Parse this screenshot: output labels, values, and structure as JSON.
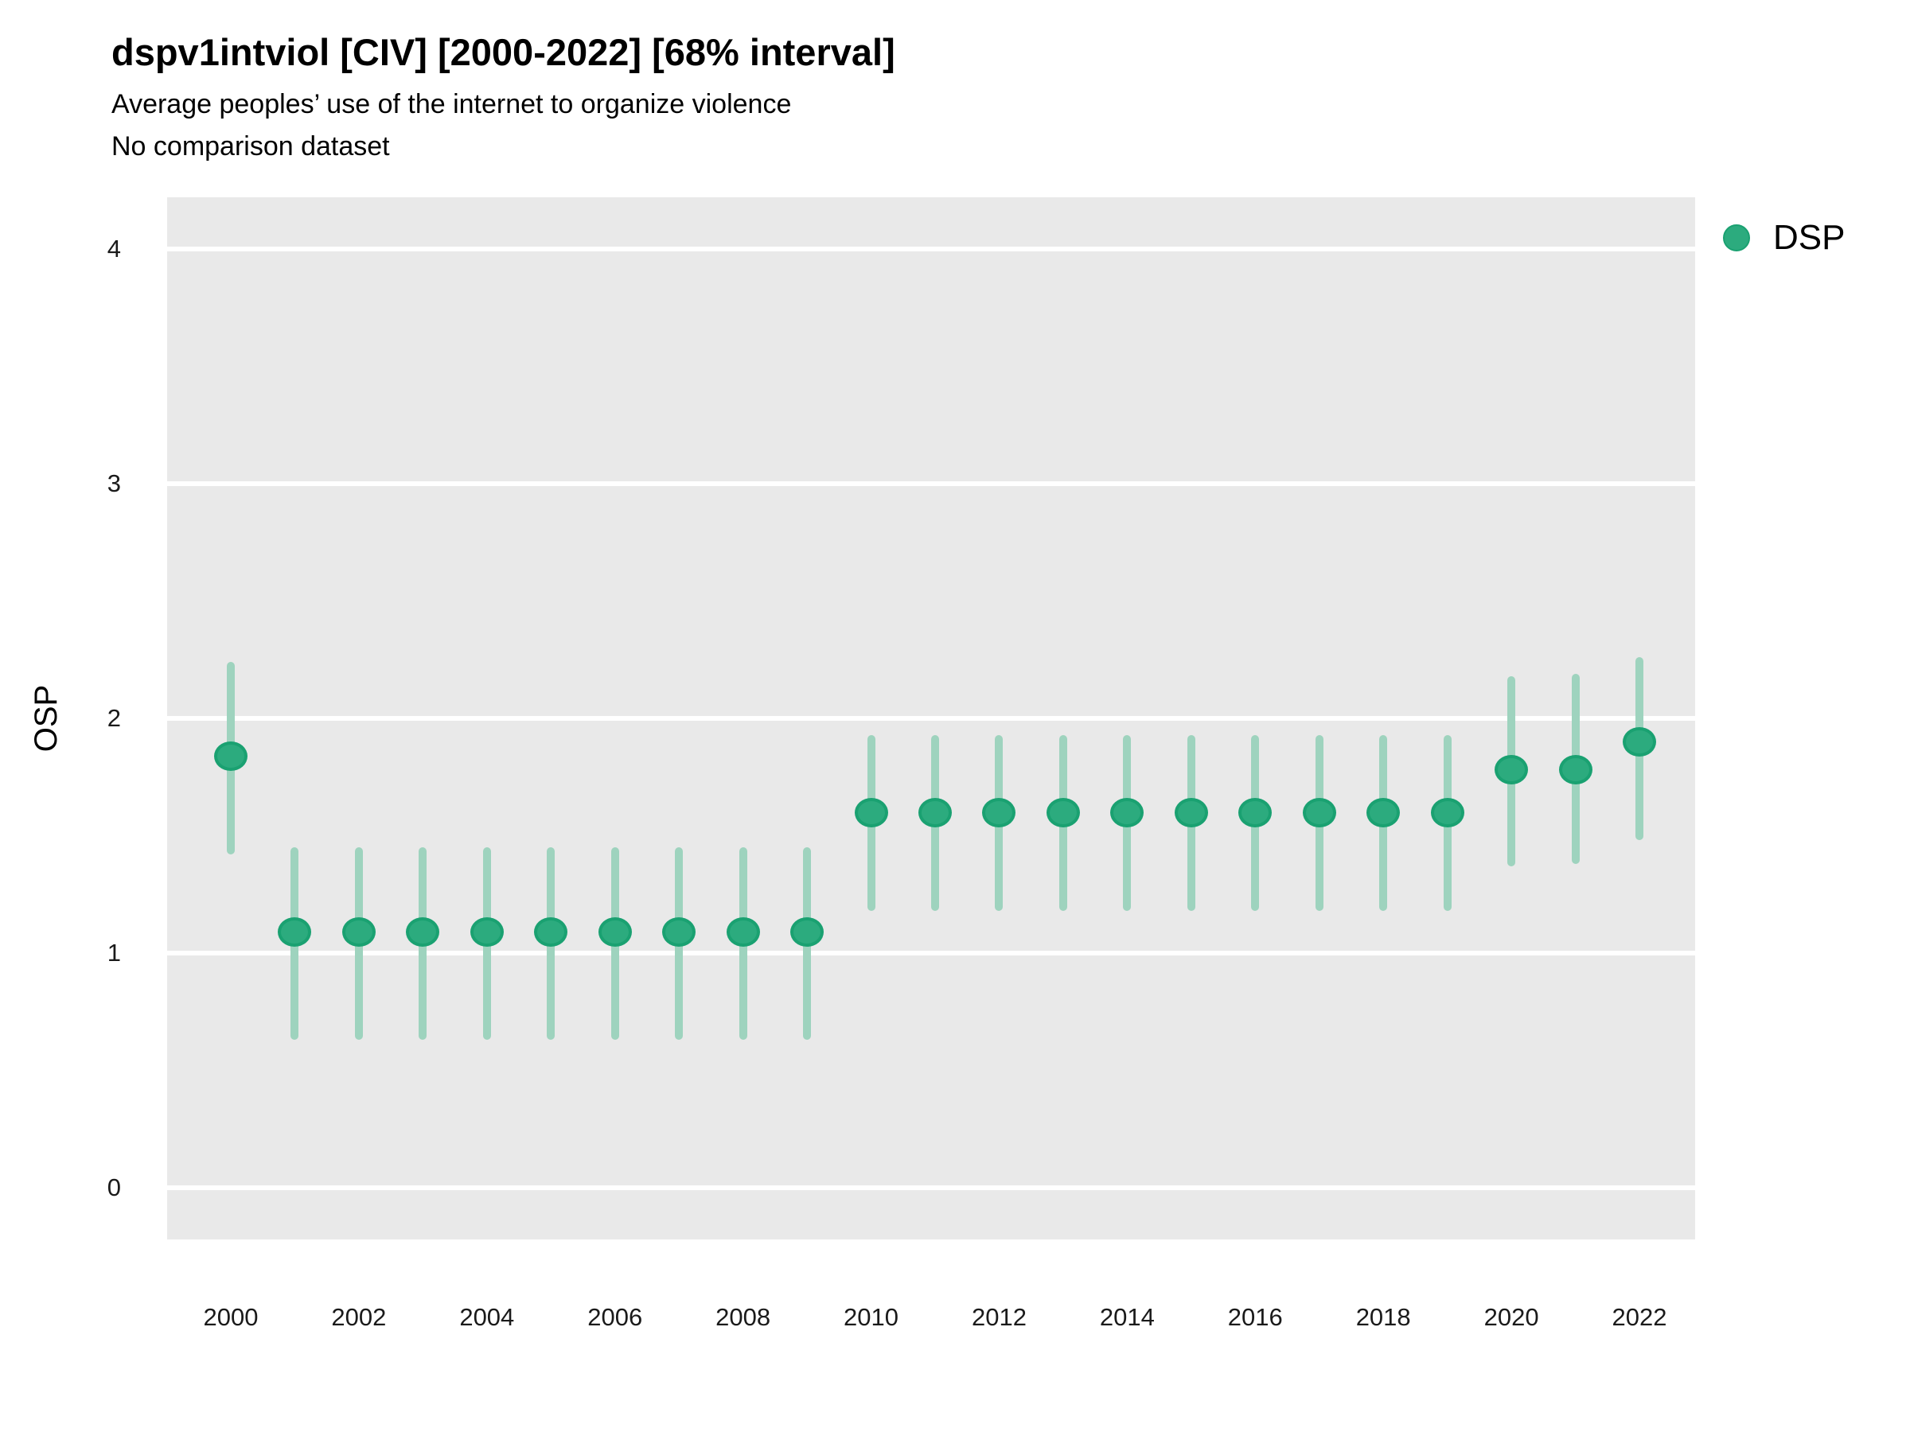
{
  "header": {
    "title": "dspv1intviol [CIV] [2000-2022] [68% interval]",
    "subtitle": "Average peoples’ use of the internet to organize violence",
    "note": "No comparison dataset"
  },
  "legend": {
    "position": "right",
    "series_label": "DSP"
  },
  "axes": {
    "y_label": "OSP",
    "y_tick_labels": [
      "0",
      "1",
      "2",
      "3",
      "4"
    ],
    "x_tick_labels": [
      "2000",
      "2002",
      "2004",
      "2006",
      "2008",
      "2010",
      "2012",
      "2014",
      "2016",
      "2018",
      "2020",
      "2022"
    ]
  },
  "colors": {
    "point_fill": "#2cab7e",
    "point_stroke": "#1aa171",
    "interval_bar": "#9ed3be",
    "panel_background": "#e9e9e9",
    "gridline": "#ffffff",
    "text": "#000000"
  },
  "chart_data": {
    "type": "scatter",
    "subtype": "pointrange",
    "interval": "68%",
    "title": "dspv1intviol [CIV] [2000-2022] [68% interval]",
    "xlabel": "",
    "ylabel": "OSP",
    "ylim": [
      -0.22,
      4.22
    ],
    "y_ticks": [
      0,
      1,
      2,
      3,
      4
    ],
    "x_ticks": [
      2000,
      2002,
      2004,
      2006,
      2008,
      2010,
      2012,
      2014,
      2016,
      2018,
      2020,
      2022
    ],
    "grid": true,
    "legend_entries": [
      "DSP"
    ],
    "series": [
      {
        "name": "DSP",
        "points": [
          {
            "year": 2000,
            "est": 1.84,
            "lo": 1.42,
            "hi": 2.24
          },
          {
            "year": 2001,
            "est": 1.09,
            "lo": 0.63,
            "hi": 1.45
          },
          {
            "year": 2002,
            "est": 1.09,
            "lo": 0.63,
            "hi": 1.45
          },
          {
            "year": 2003,
            "est": 1.09,
            "lo": 0.63,
            "hi": 1.45
          },
          {
            "year": 2004,
            "est": 1.09,
            "lo": 0.63,
            "hi": 1.45
          },
          {
            "year": 2005,
            "est": 1.09,
            "lo": 0.63,
            "hi": 1.45
          },
          {
            "year": 2006,
            "est": 1.09,
            "lo": 0.63,
            "hi": 1.45
          },
          {
            "year": 2007,
            "est": 1.09,
            "lo": 0.63,
            "hi": 1.45
          },
          {
            "year": 2008,
            "est": 1.09,
            "lo": 0.63,
            "hi": 1.45
          },
          {
            "year": 2009,
            "est": 1.09,
            "lo": 0.63,
            "hi": 1.45
          },
          {
            "year": 2010,
            "est": 1.6,
            "lo": 1.18,
            "hi": 1.93
          },
          {
            "year": 2011,
            "est": 1.6,
            "lo": 1.18,
            "hi": 1.93
          },
          {
            "year": 2012,
            "est": 1.6,
            "lo": 1.18,
            "hi": 1.93
          },
          {
            "year": 2013,
            "est": 1.6,
            "lo": 1.18,
            "hi": 1.93
          },
          {
            "year": 2014,
            "est": 1.6,
            "lo": 1.18,
            "hi": 1.93
          },
          {
            "year": 2015,
            "est": 1.6,
            "lo": 1.18,
            "hi": 1.93
          },
          {
            "year": 2016,
            "est": 1.6,
            "lo": 1.18,
            "hi": 1.93
          },
          {
            "year": 2017,
            "est": 1.6,
            "lo": 1.18,
            "hi": 1.93
          },
          {
            "year": 2018,
            "est": 1.6,
            "lo": 1.18,
            "hi": 1.93
          },
          {
            "year": 2019,
            "est": 1.6,
            "lo": 1.18,
            "hi": 1.93
          },
          {
            "year": 2020,
            "est": 1.78,
            "lo": 1.37,
            "hi": 2.18
          },
          {
            "year": 2021,
            "est": 1.78,
            "lo": 1.38,
            "hi": 2.19
          },
          {
            "year": 2022,
            "est": 1.9,
            "lo": 1.48,
            "hi": 2.26
          }
        ]
      }
    ]
  }
}
